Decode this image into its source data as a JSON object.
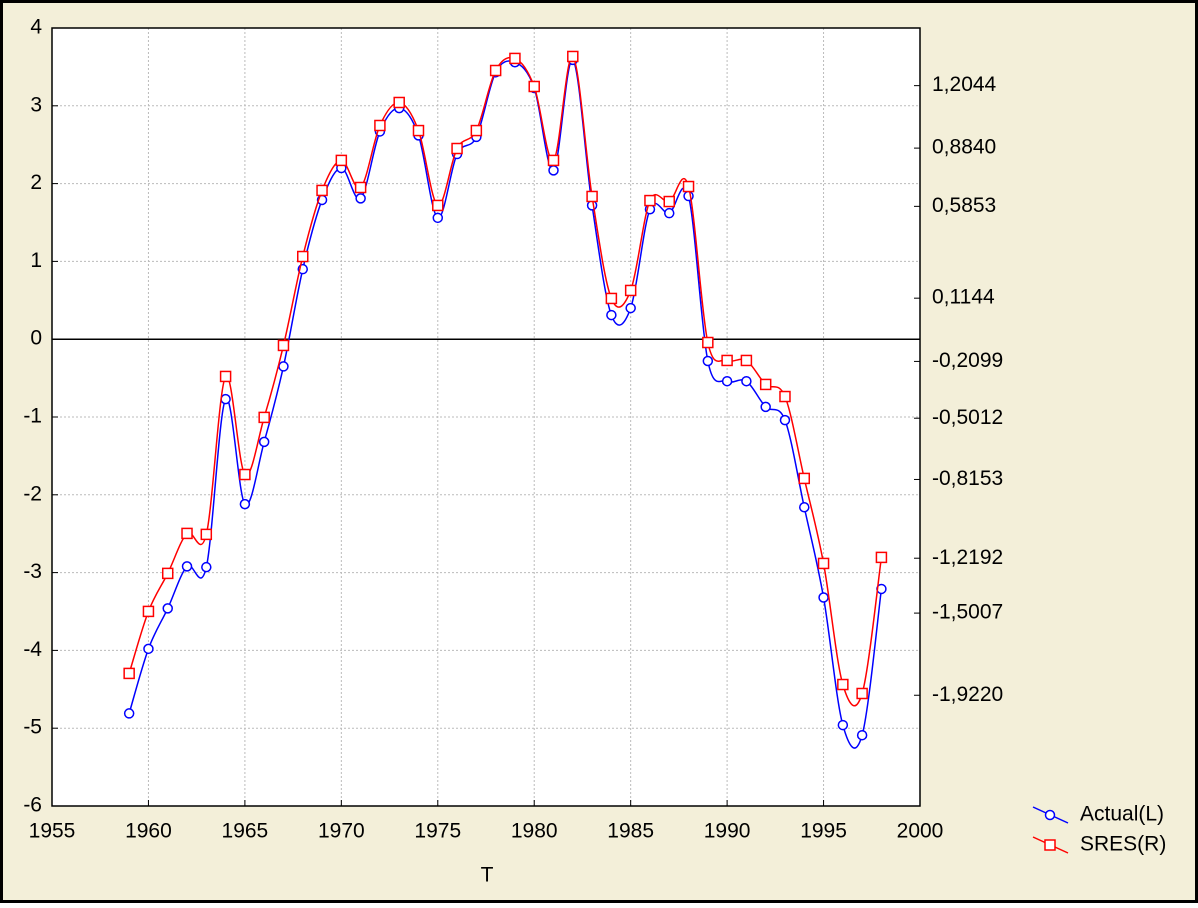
{
  "chart_data": {
    "type": "line",
    "x_label": "T",
    "x": [
      1959,
      1960,
      1961,
      1962,
      1963,
      1964,
      1965,
      1966,
      1967,
      1968,
      1969,
      1970,
      1971,
      1972,
      1973,
      1974,
      1975,
      1976,
      1977,
      1978,
      1979,
      1980,
      1981,
      1982,
      1983,
      1984,
      1985,
      1986,
      1987,
      1988,
      1989,
      1990,
      1991,
      1992,
      1993,
      1994,
      1995,
      1996,
      1997,
      1998
    ],
    "series": [
      {
        "name": "Actual(L)",
        "color": "#0000ff",
        "marker": "circle",
        "axis": "y",
        "values": [
          -4.81,
          -3.98,
          -3.46,
          -2.92,
          -2.93,
          -0.77,
          -2.12,
          -1.32,
          -0.35,
          0.9,
          1.79,
          2.2,
          1.81,
          2.67,
          2.97,
          2.62,
          1.56,
          2.38,
          2.6,
          3.43,
          3.56,
          3.23,
          2.17,
          3.59,
          1.72,
          0.31,
          0.4,
          1.67,
          1.62,
          1.84,
          -0.28,
          -0.54,
          -0.54,
          -0.87,
          -1.04,
          -2.16,
          -3.32,
          -4.96,
          -5.09,
          -3.21
        ]
      },
      {
        "name": "SRES(R)",
        "color": "#ff0000",
        "marker": "square",
        "axis": "y2",
        "values": [
          -1.81,
          -1.492,
          -1.297,
          -1.092,
          -1.097,
          -0.287,
          -0.79,
          -0.497,
          -0.128,
          0.328,
          0.667,
          0.821,
          0.682,
          1.0,
          1.118,
          0.974,
          0.59,
          0.882,
          0.974,
          1.282,
          1.344,
          1.2,
          0.821,
          1.354,
          0.636,
          0.113,
          0.154,
          0.615,
          0.61,
          0.687,
          -0.113,
          -0.205,
          -0.205,
          -0.328,
          -0.39,
          -0.81,
          -1.246,
          -1.867,
          -1.913,
          -1.215
        ]
      }
    ],
    "xlim": [
      1955,
      2000
    ],
    "xticks": [
      1955,
      1960,
      1965,
      1970,
      1975,
      1980,
      1985,
      1990,
      1995,
      2000
    ],
    "ylim": [
      -6,
      4
    ],
    "yticks": [
      -6,
      -5,
      -4,
      -3,
      -2,
      -1,
      0,
      1,
      2,
      3,
      4
    ],
    "y2lim": [
      -2.49,
      1.5
    ],
    "y2ticks": [
      {
        "value": 1.2044,
        "label": "1,2044"
      },
      {
        "value": 0.884,
        "label": "0,8840"
      },
      {
        "value": 0.5853,
        "label": "0,5853"
      },
      {
        "value": 0.1144,
        "label": "0,1144"
      },
      {
        "value": -0.2099,
        "label": "-0,2099"
      },
      {
        "value": -0.5012,
        "label": "-0,5012"
      },
      {
        "value": -0.8153,
        "label": "-0,8153"
      },
      {
        "value": -1.2192,
        "label": "-1,2192"
      },
      {
        "value": -1.5007,
        "label": "-1,5007"
      },
      {
        "value": -1.922,
        "label": "-1,9220"
      }
    ],
    "grid": true,
    "legend": "bottom-right"
  }
}
